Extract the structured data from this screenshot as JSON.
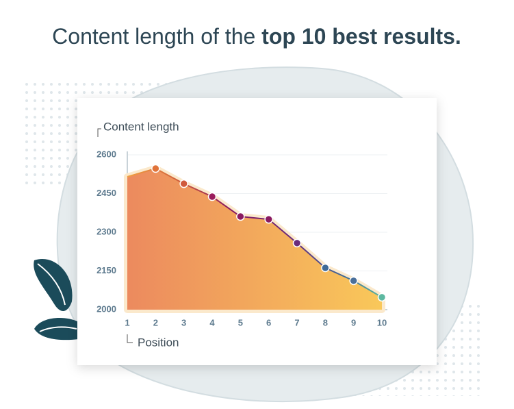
{
  "chart_data": {
    "type": "line",
    "title": {
      "text": "Content length of the",
      "emphasis": "top 10 best results."
    },
    "y_label": "Content length",
    "x_label": "Position",
    "x": [
      1,
      2,
      3,
      4,
      5,
      6,
      7,
      8,
      9,
      10
    ],
    "values": [
      2515,
      2547,
      2488,
      2438,
      2361,
      2350,
      2258,
      2162,
      2112,
      2048
    ],
    "point_colors": [
      null,
      "#e0733a",
      "#d05a3c",
      "#9a1c5c",
      "#8a1a60",
      "#8a1a60",
      "#6a2c7c",
      "#3f6a98",
      "#4a6f9a",
      "#5db8a0"
    ],
    "xlim": [
      1,
      10
    ],
    "xticks": [
      1,
      2,
      3,
      4,
      5,
      6,
      7,
      8,
      9,
      10
    ],
    "ylim": [
      2000,
      2600
    ],
    "yticks": [
      2000,
      2150,
      2300,
      2450,
      2600
    ],
    "grid": true,
    "area": true
  }
}
